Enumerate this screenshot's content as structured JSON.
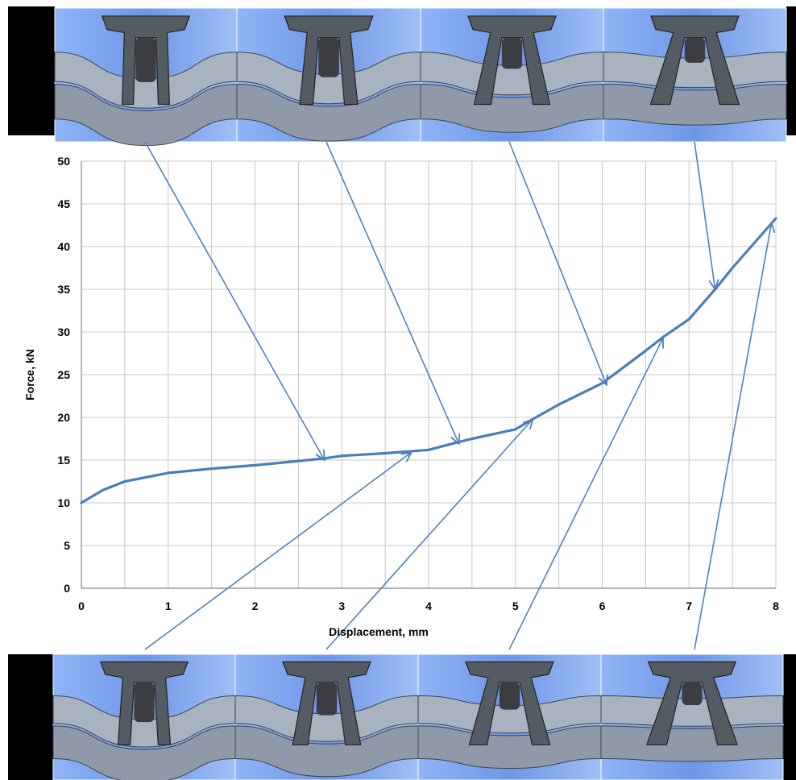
{
  "colors": {
    "series": "#4A7EBB",
    "arrow": "#4F81BD",
    "grid": "#c8c8c8",
    "photo_bg": "#7fa6f0",
    "sheet": "#9aa4b2",
    "rivet": "#555b63",
    "pin": "#3b3d40",
    "edge_bar": "#000000"
  },
  "chart_data": {
    "type": "line",
    "xlabel": "Displacement, mm",
    "ylabel": "Force, kN",
    "xlim": [
      0,
      8
    ],
    "ylim": [
      0,
      50
    ],
    "x_ticks": [
      "0",
      "1",
      "2",
      "3",
      "4",
      "5",
      "6",
      "7",
      "8"
    ],
    "y_ticks": [
      "0",
      "5",
      "10",
      "15",
      "20",
      "25",
      "30",
      "35",
      "40",
      "45",
      "50"
    ],
    "grid": true,
    "legend": "none",
    "series": [
      {
        "x": [
          0,
          0.25,
          0.5,
          1,
          1.5,
          2,
          2.5,
          2.8,
          3,
          3.5,
          4,
          4.3,
          4.5,
          5,
          5.2,
          5.5,
          6,
          6.5,
          6.7,
          7,
          7.3,
          7.5,
          8
        ],
        "y": [
          10,
          11.5,
          12.5,
          13.5,
          14,
          14.4,
          14.9,
          15.2,
          15.5,
          15.8,
          16.2,
          17,
          17.5,
          18.6,
          19.8,
          21.5,
          24,
          27.8,
          29.4,
          31.5,
          35,
          37.5,
          43.3
        ]
      }
    ],
    "annotations": [
      {
        "from": "top-photo-1",
        "to": [
          2.8,
          15
        ]
      },
      {
        "from": "top-photo-2",
        "to": [
          4.35,
          16.9
        ]
      },
      {
        "from": "top-photo-3",
        "to": [
          6.05,
          23.8
        ]
      },
      {
        "from": "top-photo-4",
        "to": [
          7.3,
          35
        ]
      },
      {
        "from": "bottom-photo-1",
        "to": [
          3.8,
          15.9
        ]
      },
      {
        "from": "bottom-photo-2",
        "to": [
          5.2,
          19.8
        ]
      },
      {
        "from": "bottom-photo-3",
        "to": [
          6.7,
          29.3
        ]
      },
      {
        "from": "bottom-photo-4",
        "to": [
          7.95,
          42.8
        ]
      }
    ]
  },
  "photos": {
    "top": [
      {
        "stage": 1,
        "bulge": 0.9,
        "flare": 0.15
      },
      {
        "stage": 2,
        "bulge": 0.75,
        "flare": 0.35
      },
      {
        "stage": 3,
        "bulge": 0.45,
        "flare": 0.7
      },
      {
        "stage": 4,
        "bulge": 0.2,
        "flare": 0.95
      }
    ],
    "bottom": [
      {
        "stage": 1,
        "bulge": 0.85,
        "flare": 0.25
      },
      {
        "stage": 2,
        "bulge": 0.65,
        "flare": 0.55
      },
      {
        "stage": 3,
        "bulge": 0.35,
        "flare": 0.8
      },
      {
        "stage": 4,
        "bulge": 0.1,
        "flare": 1.0
      }
    ]
  }
}
